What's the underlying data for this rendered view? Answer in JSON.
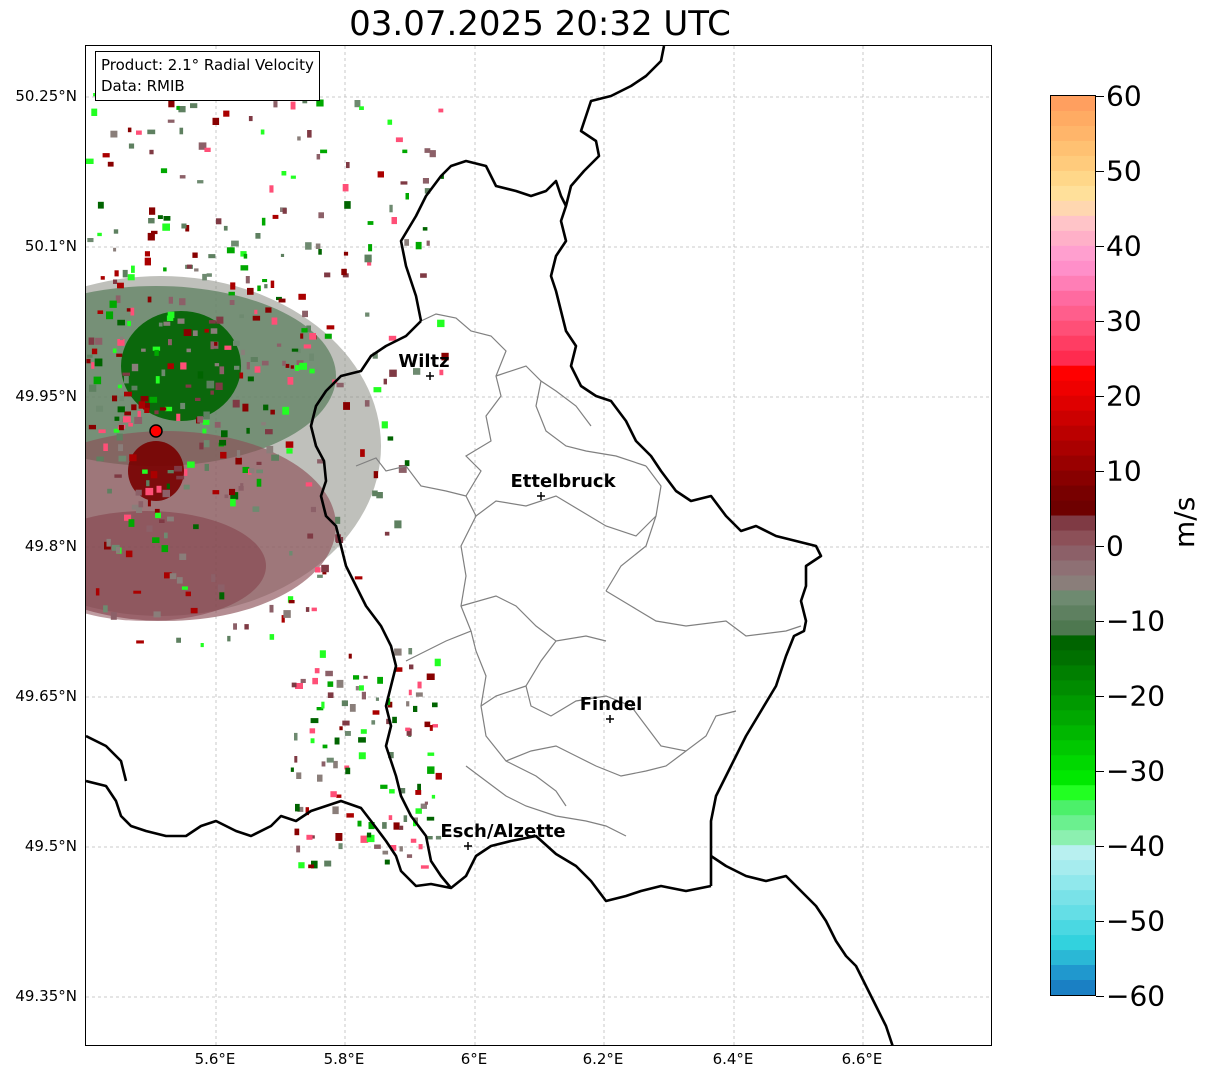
{
  "title": "03.07.2025 20:32 UTC",
  "info": {
    "product": "Product: 2.1° Radial Velocity",
    "data": "Data: RMIB"
  },
  "lat_labels": [
    "50.25°N",
    "50.1°N",
    "49.95°N",
    "49.8°N",
    "49.65°N",
    "49.5°N",
    "49.35°N"
  ],
  "lon_labels": [
    "5.6°E",
    "5.8°E",
    "6°E",
    "6.2°E",
    "6.4°E",
    "6.6°E"
  ],
  "cities": [
    {
      "name": "Wiltz"
    },
    {
      "name": "Ettelbruck"
    },
    {
      "name": "Findel"
    },
    {
      "name": "Esch/Alzette"
    }
  ],
  "colorbar": {
    "unit": "m/s",
    "ticks": [
      "60",
      "50",
      "40",
      "30",
      "20",
      "10",
      "0",
      "−10",
      "−20",
      "−30",
      "−40",
      "−50",
      "−60"
    ],
    "colors": [
      "#ff9f5f",
      "#ffab63",
      "#ffb56a",
      "#ffc172",
      "#ffcb7c",
      "#ffd789",
      "#ffe09a",
      "#ffd7b0",
      "#ffc4c8",
      "#ffb0c8",
      "#ff9fcf",
      "#ff8fc9",
      "#ff7eb6",
      "#ff6aa0",
      "#ff5e8c",
      "#ff4f77",
      "#ff3d63",
      "#ff2b4f",
      "#ff0000",
      "#ef0000",
      "#df0000",
      "#cc0000",
      "#bb0000",
      "#aa0000",
      "#990000",
      "#880000",
      "#780000",
      "#6e0000",
      "#7f3a44",
      "#8c5058",
      "#8c6068",
      "#8e7074",
      "#8a7e7a",
      "#6e8a70",
      "#5e8060",
      "#4e7850",
      "#006400",
      "#007000",
      "#007f00",
      "#008c00",
      "#009a00",
      "#00a800",
      "#00b700",
      "#00c800",
      "#00d800",
      "#00e800",
      "#22ff22",
      "#4cf06a",
      "#6bf08f",
      "#8cf0b0",
      "#b8f0f0",
      "#a6ecee",
      "#90e8ec",
      "#79e2e8",
      "#64dee6",
      "#4ad8e2",
      "#32d2de",
      "#2ab8d6",
      "#2098ce",
      "#1a80c4"
    ]
  },
  "radar": {
    "site": "radar-site",
    "symbol": "red-circle"
  }
}
